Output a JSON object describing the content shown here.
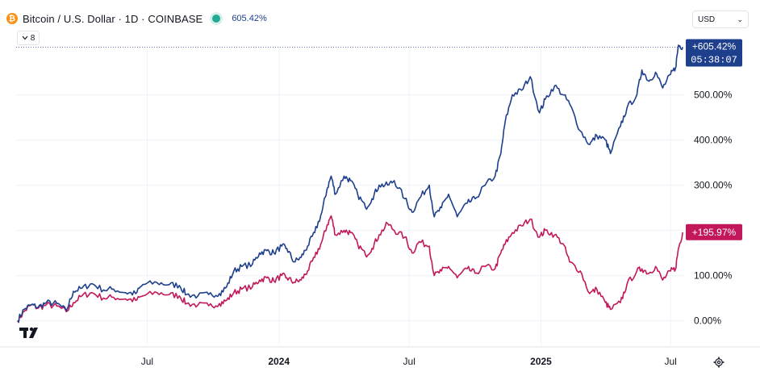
{
  "header": {
    "coin_glyph": "₿",
    "title": "Bitcoin / U.S. Dollar · 1D · COINBASE",
    "value": "605.42%"
  },
  "currency": {
    "label": "USD"
  },
  "legend_toggle": {
    "label": "8"
  },
  "colors": {
    "btc": "#1e3f8c",
    "second": "#c2185b",
    "grid": "#f0f3fa",
    "text": "#131722"
  },
  "icons": {
    "coin": "bitcoin-icon",
    "chevron": "chevron-down-icon",
    "logo": "tradingview-logo",
    "settings": "gear-icon"
  },
  "chart_data": {
    "type": "line",
    "y_scale": "percent",
    "ylim": [
      -5,
      660
    ],
    "y_ticks": [
      0,
      100,
      200,
      300,
      400,
      500
    ],
    "y_tick_labels": [
      "0.00%",
      "100.00%",
      "",
      "300.00%",
      "400.00%",
      "500.00%"
    ],
    "x_ticks": [
      {
        "label": "Jul",
        "date": "2023-07-01"
      },
      {
        "label": "2024",
        "date": "2024-01-01"
      },
      {
        "label": "Jul",
        "date": "2024-07-01"
      },
      {
        "label": "2025",
        "date": "2025-01-01"
      },
      {
        "label": "Jul",
        "date": "2025-07-01"
      }
    ],
    "xlim": [
      "2022-12-30",
      "2025-07-20"
    ],
    "series": [
      {
        "color": "#1e3f8c",
        "last_label": "+605.42%",
        "countdown": "05:38:07",
        "points": [
          [
            "2023-01-01",
            0
          ],
          [
            "2023-01-10",
            25
          ],
          [
            "2023-01-20",
            35
          ],
          [
            "2023-01-30",
            30
          ],
          [
            "2023-02-10",
            40
          ],
          [
            "2023-02-25",
            38
          ],
          [
            "2023-03-10",
            22
          ],
          [
            "2023-03-20",
            65
          ],
          [
            "2023-04-01",
            72
          ],
          [
            "2023-04-15",
            82
          ],
          [
            "2023-05-01",
            68
          ],
          [
            "2023-05-15",
            70
          ],
          [
            "2023-06-01",
            62
          ],
          [
            "2023-06-15",
            60
          ],
          [
            "2023-06-25",
            80
          ],
          [
            "2023-07-15",
            84
          ],
          [
            "2023-08-01",
            80
          ],
          [
            "2023-08-15",
            78
          ],
          [
            "2023-08-25",
            58
          ],
          [
            "2023-09-10",
            55
          ],
          [
            "2023-09-25",
            58
          ],
          [
            "2023-10-10",
            60
          ],
          [
            "2023-10-20",
            75
          ],
          [
            "2023-10-30",
            110
          ],
          [
            "2023-11-10",
            120
          ],
          [
            "2023-11-25",
            125
          ],
          [
            "2023-12-05",
            150
          ],
          [
            "2023-12-15",
            155
          ],
          [
            "2023-12-25",
            150
          ],
          [
            "2024-01-05",
            165
          ],
          [
            "2024-01-12",
            160
          ],
          [
            "2024-01-22",
            130
          ],
          [
            "2024-02-01",
            140
          ],
          [
            "2024-02-10",
            165
          ],
          [
            "2024-02-20",
            195
          ],
          [
            "2024-03-01",
            240
          ],
          [
            "2024-03-08",
            290
          ],
          [
            "2024-03-14",
            320
          ],
          [
            "2024-03-20",
            280
          ],
          [
            "2024-04-01",
            320
          ],
          [
            "2024-04-10",
            310
          ],
          [
            "2024-04-20",
            280
          ],
          [
            "2024-05-01",
            250
          ],
          [
            "2024-05-10",
            270
          ],
          [
            "2024-05-20",
            300
          ],
          [
            "2024-06-01",
            300
          ],
          [
            "2024-06-10",
            310
          ],
          [
            "2024-06-25",
            270
          ],
          [
            "2024-07-05",
            240
          ],
          [
            "2024-07-15",
            270
          ],
          [
            "2024-07-29",
            300
          ],
          [
            "2024-08-05",
            230
          ],
          [
            "2024-08-15",
            250
          ],
          [
            "2024-08-25",
            280
          ],
          [
            "2024-09-06",
            230
          ],
          [
            "2024-09-20",
            260
          ],
          [
            "2024-10-01",
            270
          ],
          [
            "2024-10-15",
            300
          ],
          [
            "2024-10-29",
            320
          ],
          [
            "2024-11-06",
            370
          ],
          [
            "2024-11-12",
            440
          ],
          [
            "2024-11-22",
            500
          ],
          [
            "2024-12-05",
            510
          ],
          [
            "2024-12-17",
            540
          ],
          [
            "2024-12-30",
            460
          ],
          [
            "2025-01-07",
            490
          ],
          [
            "2025-01-20",
            520
          ],
          [
            "2025-02-01",
            500
          ],
          [
            "2025-02-10",
            480
          ],
          [
            "2025-02-25",
            420
          ],
          [
            "2025-03-10",
            390
          ],
          [
            "2025-03-20",
            410
          ],
          [
            "2025-04-01",
            400
          ],
          [
            "2025-04-08",
            370
          ],
          [
            "2025-04-22",
            430
          ],
          [
            "2025-05-01",
            470
          ],
          [
            "2025-05-15",
            500
          ],
          [
            "2025-05-22",
            555
          ],
          [
            "2025-06-01",
            530
          ],
          [
            "2025-06-10",
            550
          ],
          [
            "2025-06-20",
            515
          ],
          [
            "2025-07-01",
            545
          ],
          [
            "2025-07-08",
            560
          ],
          [
            "2025-07-12",
            610
          ],
          [
            "2025-07-18",
            605.42
          ]
        ]
      },
      {
        "color": "#c2185b",
        "last_label": "+195.97%",
        "points": [
          [
            "2023-01-01",
            0
          ],
          [
            "2023-01-10",
            20
          ],
          [
            "2023-01-20",
            35
          ],
          [
            "2023-01-30",
            28
          ],
          [
            "2023-02-10",
            35
          ],
          [
            "2023-02-25",
            32
          ],
          [
            "2023-03-10",
            20
          ],
          [
            "2023-03-20",
            40
          ],
          [
            "2023-04-01",
            55
          ],
          [
            "2023-04-15",
            62
          ],
          [
            "2023-05-01",
            50
          ],
          [
            "2023-05-15",
            52
          ],
          [
            "2023-06-01",
            48
          ],
          [
            "2023-06-15",
            45
          ],
          [
            "2023-06-25",
            55
          ],
          [
            "2023-07-15",
            62
          ],
          [
            "2023-08-01",
            58
          ],
          [
            "2023-08-15",
            55
          ],
          [
            "2023-08-25",
            38
          ],
          [
            "2023-09-10",
            35
          ],
          [
            "2023-09-25",
            33
          ],
          [
            "2023-10-10",
            38
          ],
          [
            "2023-10-20",
            45
          ],
          [
            "2023-10-30",
            62
          ],
          [
            "2023-11-10",
            70
          ],
          [
            "2023-11-25",
            75
          ],
          [
            "2023-12-05",
            90
          ],
          [
            "2023-12-15",
            95
          ],
          [
            "2023-12-25",
            88
          ],
          [
            "2024-01-05",
            100
          ],
          [
            "2024-01-12",
            95
          ],
          [
            "2024-01-22",
            85
          ],
          [
            "2024-02-01",
            90
          ],
          [
            "2024-02-10",
            110
          ],
          [
            "2024-02-20",
            140
          ],
          [
            "2024-03-01",
            175
          ],
          [
            "2024-03-08",
            210
          ],
          [
            "2024-03-14",
            232
          ],
          [
            "2024-03-20",
            190
          ],
          [
            "2024-04-01",
            200
          ],
          [
            "2024-04-10",
            195
          ],
          [
            "2024-04-20",
            170
          ],
          [
            "2024-05-01",
            145
          ],
          [
            "2024-05-10",
            160
          ],
          [
            "2024-05-20",
            190
          ],
          [
            "2024-06-01",
            215
          ],
          [
            "2024-06-10",
            200
          ],
          [
            "2024-06-25",
            185
          ],
          [
            "2024-07-05",
            150
          ],
          [
            "2024-07-15",
            175
          ],
          [
            "2024-07-29",
            165
          ],
          [
            "2024-08-05",
            100
          ],
          [
            "2024-08-15",
            110
          ],
          [
            "2024-08-25",
            120
          ],
          [
            "2024-09-06",
            95
          ],
          [
            "2024-09-20",
            115
          ],
          [
            "2024-10-01",
            105
          ],
          [
            "2024-10-15",
            120
          ],
          [
            "2024-10-29",
            115
          ],
          [
            "2024-11-06",
            150
          ],
          [
            "2024-11-12",
            170
          ],
          [
            "2024-11-22",
            195
          ],
          [
            "2024-12-05",
            210
          ],
          [
            "2024-12-17",
            225
          ],
          [
            "2024-12-30",
            185
          ],
          [
            "2025-01-07",
            200
          ],
          [
            "2025-01-20",
            190
          ],
          [
            "2025-02-01",
            170
          ],
          [
            "2025-02-10",
            130
          ],
          [
            "2025-02-25",
            110
          ],
          [
            "2025-03-10",
            60
          ],
          [
            "2025-03-20",
            70
          ],
          [
            "2025-04-01",
            40
          ],
          [
            "2025-04-08",
            25
          ],
          [
            "2025-04-22",
            40
          ],
          [
            "2025-05-01",
            80
          ],
          [
            "2025-05-15",
            110
          ],
          [
            "2025-05-22",
            115
          ],
          [
            "2025-06-01",
            105
          ],
          [
            "2025-06-10",
            120
          ],
          [
            "2025-06-20",
            90
          ],
          [
            "2025-07-01",
            110
          ],
          [
            "2025-07-08",
            115
          ],
          [
            "2025-07-12",
            160
          ],
          [
            "2025-07-18",
            195.97
          ]
        ]
      }
    ]
  }
}
